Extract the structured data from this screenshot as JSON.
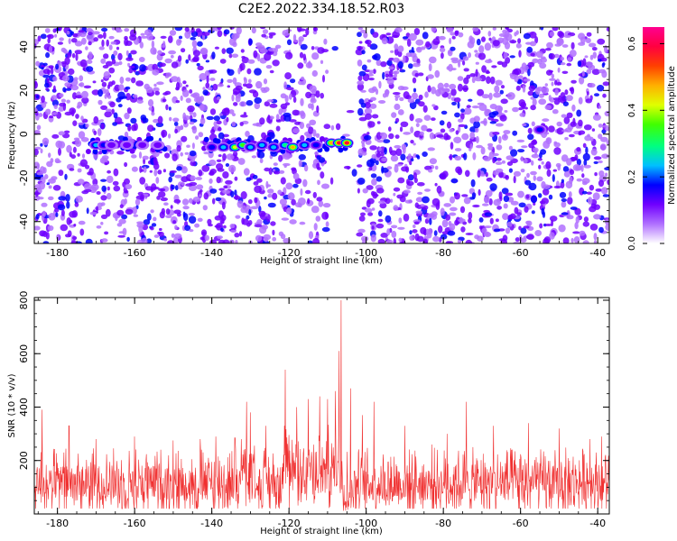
{
  "title": "C2E2.2022.334.18.52.R03",
  "chart_data": [
    {
      "type": "heatmap",
      "xlabel": "Height of straight line (km)",
      "ylabel": "Frequency (Hz)",
      "xlim": [
        -186,
        -37
      ],
      "ylim": [
        -50,
        49
      ],
      "xticks": [
        -180,
        -160,
        -140,
        -120,
        -100,
        -80,
        -60,
        -40
      ],
      "yticks": [
        -40,
        -20,
        0,
        20,
        40
      ],
      "colorbar": {
        "label": "Normalized spectral amplitude",
        "range": [
          0,
          0.65
        ],
        "ticks": [
          0.0,
          0.2,
          0.4,
          0.6
        ],
        "colors": [
          "#ffffff",
          "#b070ff",
          "#7000ff",
          "#0000ff",
          "#00c0ff",
          "#00ff80",
          "#40ff00",
          "#e0ff00",
          "#ffb000",
          "#ff4000",
          "#ff0040",
          "#ff0090"
        ]
      },
      "gap_km": [
        -110,
        -102
      ],
      "signal_band_hz": [
        -8,
        -2
      ],
      "signal_peaks": [
        {
          "x": -170,
          "y": -5,
          "v": 0.25
        },
        {
          "x": -168,
          "y": -5,
          "v": 0.18
        },
        {
          "x": -166,
          "y": -5,
          "v": 0.12
        },
        {
          "x": -162,
          "y": -5,
          "v": 0.14
        },
        {
          "x": -158,
          "y": -5,
          "v": 0.12
        },
        {
          "x": -154,
          "y": -5,
          "v": 0.1
        },
        {
          "x": -140,
          "y": -6,
          "v": 0.18
        },
        {
          "x": -137,
          "y": -6,
          "v": 0.22
        },
        {
          "x": -134,
          "y": -6,
          "v": 0.4
        },
        {
          "x": -132,
          "y": -5,
          "v": 0.35
        },
        {
          "x": -130,
          "y": -6,
          "v": 0.25
        },
        {
          "x": -127,
          "y": -5,
          "v": 0.22
        },
        {
          "x": -124,
          "y": -6,
          "v": 0.24
        },
        {
          "x": -121,
          "y": -5,
          "v": 0.3
        },
        {
          "x": -119,
          "y": -6,
          "v": 0.45
        },
        {
          "x": -116,
          "y": -5,
          "v": 0.25
        },
        {
          "x": -113,
          "y": -5,
          "v": 0.2
        },
        {
          "x": -109,
          "y": -4,
          "v": 0.5
        },
        {
          "x": -107,
          "y": -4,
          "v": 0.62
        },
        {
          "x": -105,
          "y": -4,
          "v": 0.58
        },
        {
          "x": -55,
          "y": 2,
          "v": 0.18
        }
      ]
    },
    {
      "type": "line",
      "xlabel": "Height of straight line (km)",
      "ylabel": "SNR (10 * v/v)",
      "xlim": [
        -186,
        -37
      ],
      "ylim": [
        0,
        810
      ],
      "xticks": [
        -180,
        -160,
        -140,
        -120,
        -100,
        -80,
        -60,
        -40
      ],
      "yticks": [
        200,
        400,
        600,
        800
      ],
      "color": "#f03030",
      "series": [
        {
          "name": "SNR",
          "baseline": 115,
          "noise_range": [
            20,
            250
          ],
          "spikes": [
            {
              "x": -184,
              "y": 390
            },
            {
              "x": -177,
              "y": 330
            },
            {
              "x": -170,
              "y": 280
            },
            {
              "x": -160,
              "y": 290
            },
            {
              "x": -150,
              "y": 275
            },
            {
              "x": -143,
              "y": 280
            },
            {
              "x": -139,
              "y": 290
            },
            {
              "x": -134,
              "y": 285
            },
            {
              "x": -131,
              "y": 420
            },
            {
              "x": -130,
              "y": 380
            },
            {
              "x": -126,
              "y": 330
            },
            {
              "x": -121,
              "y": 540
            },
            {
              "x": -118,
              "y": 400
            },
            {
              "x": -115,
              "y": 430
            },
            {
              "x": -112,
              "y": 440
            },
            {
              "x": -110,
              "y": 430
            },
            {
              "x": -108,
              "y": 460
            },
            {
              "x": -107,
              "y": 610
            },
            {
              "x": -106.5,
              "y": 800
            },
            {
              "x": -106,
              "y": 760
            },
            {
              "x": -105.5,
              "y": 640
            },
            {
              "x": -104,
              "y": 470
            },
            {
              "x": -101,
              "y": 370
            },
            {
              "x": -98,
              "y": 420
            },
            {
              "x": -90,
              "y": 330
            },
            {
              "x": -83,
              "y": 260
            },
            {
              "x": -79,
              "y": 300
            },
            {
              "x": -74,
              "y": 420
            },
            {
              "x": -67,
              "y": 330
            },
            {
              "x": -58,
              "y": 340
            },
            {
              "x": -50,
              "y": 320
            },
            {
              "x": -42,
              "y": 280
            },
            {
              "x": -39,
              "y": 290
            }
          ],
          "dip_km": [
            -106,
            -103
          ],
          "dip_value": 10
        }
      ]
    }
  ]
}
